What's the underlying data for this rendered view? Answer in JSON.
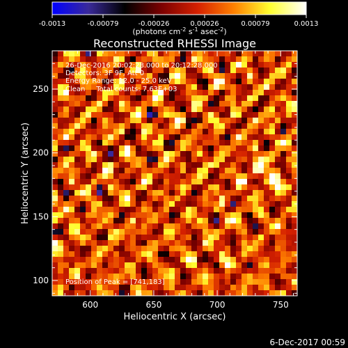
{
  "chart_data": {
    "type": "heatmap",
    "title": "Reconstructed RHESSI Image",
    "xlabel": "Heliocentric X (arcsec)",
    "ylabel": "Heliocentric Y (arcsec)",
    "xlim": [
      570,
      763
    ],
    "ylim": [
      88,
      280
    ],
    "x_ticks": [
      600,
      650,
      700,
      750
    ],
    "y_ticks": [
      100,
      150,
      200,
      250
    ],
    "colorbar": {
      "range": [
        -0.0013,
        0.0013
      ],
      "tick_labels": [
        "-0.0013",
        "-0.00079",
        "-0.00026",
        "0.00026",
        "0.00079",
        "0.0013"
      ],
      "unit_label": [
        "(photons cm",
        "-2",
        " s",
        "-1",
        " asec",
        "-2",
        ")"
      ],
      "colors": [
        "#0000ff",
        "#3a2a9a",
        "#000000",
        "#7a0000",
        "#d42000",
        "#ff8000",
        "#ffff30",
        "#ffffff"
      ]
    },
    "annotations": [
      "26-Dec-2016 20:02:28.000 to 20:12:28.000",
      "Detectors: 3F 9F, Att 0",
      "Energy Range: 12.0 - 25.0 keV",
      "Clean     Total counts: 7.63E+03"
    ],
    "peak_label": "Position of Peak = [741,183]",
    "peak": [
      741,
      183
    ],
    "grid": false,
    "legend": "none"
  },
  "footer": {
    "timestamp": "6-Dec-2017 00:59"
  }
}
